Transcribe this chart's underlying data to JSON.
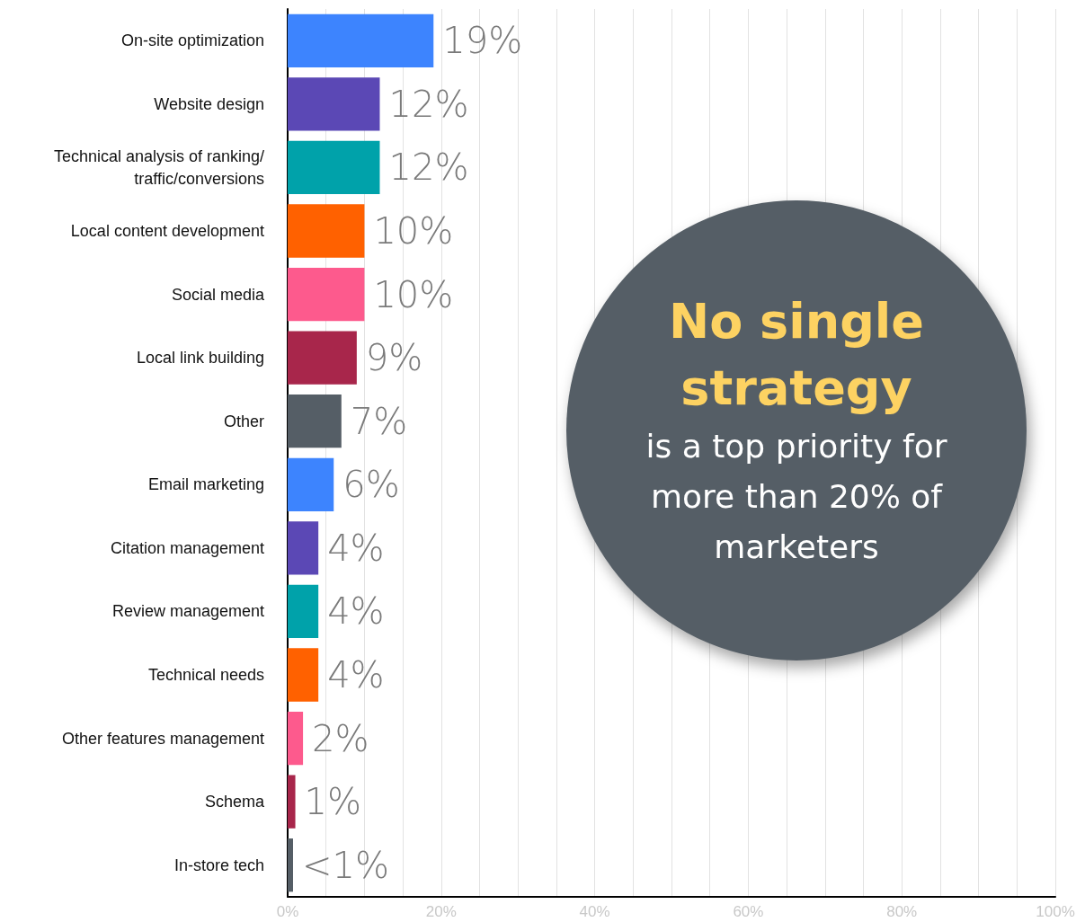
{
  "chart_data": {
    "type": "bar",
    "orientation": "horizontal",
    "categories": [
      "On-site optimization",
      "Website design",
      "Technical analysis of ranking/traffic/conversions",
      "Local content development",
      "Social media",
      "Local link building",
      "Other",
      "Email marketing",
      "Citation management",
      "Review management",
      "Technical needs",
      "Other features management",
      "Schema",
      "In-store tech"
    ],
    "values": [
      19,
      12,
      12,
      10,
      10,
      9,
      7,
      6,
      4,
      4,
      4,
      2,
      1,
      0.7
    ],
    "value_labels": [
      "19%",
      "12%",
      "12%",
      "10%",
      "10%",
      "9%",
      "7%",
      "6%",
      "4%",
      "4%",
      "4%",
      "2%",
      "1%",
      "<1%"
    ],
    "colors": [
      "#3d84fe",
      "#5b48b5",
      "#00a2aa",
      "#ff6100",
      "#fd5a8d",
      "#a8264b",
      "#555e66",
      "#3d84fe",
      "#5b48b5",
      "#00a2aa",
      "#ff6100",
      "#fd5a8d",
      "#a8264b",
      "#555e66"
    ],
    "xlim": [
      0,
      100
    ],
    "xticks": [
      {
        "value": 0,
        "label": "0%"
      },
      {
        "value": 5,
        "label": null
      },
      {
        "value": 10,
        "label": null
      },
      {
        "value": 15,
        "label": null
      },
      {
        "value": 20,
        "label": "20%"
      },
      {
        "value": 25,
        "label": null
      },
      {
        "value": 30,
        "label": null
      },
      {
        "value": 35,
        "label": null
      },
      {
        "value": 40,
        "label": "40%"
      },
      {
        "value": 45,
        "label": null
      },
      {
        "value": 50,
        "label": null
      },
      {
        "value": 55,
        "label": null
      },
      {
        "value": 60,
        "label": "60%"
      },
      {
        "value": 65,
        "label": null
      },
      {
        "value": 70,
        "label": null
      },
      {
        "value": 75,
        "label": null
      },
      {
        "value": 80,
        "label": "80%"
      },
      {
        "value": 85,
        "label": null
      },
      {
        "value": 90,
        "label": null
      },
      {
        "value": 95,
        "label": null
      },
      {
        "value": 100,
        "label": "100%"
      }
    ],
    "grid": "x",
    "annotations": [
      "No single strategy",
      "is a top priority for more than 20% of marketers"
    ]
  }
}
